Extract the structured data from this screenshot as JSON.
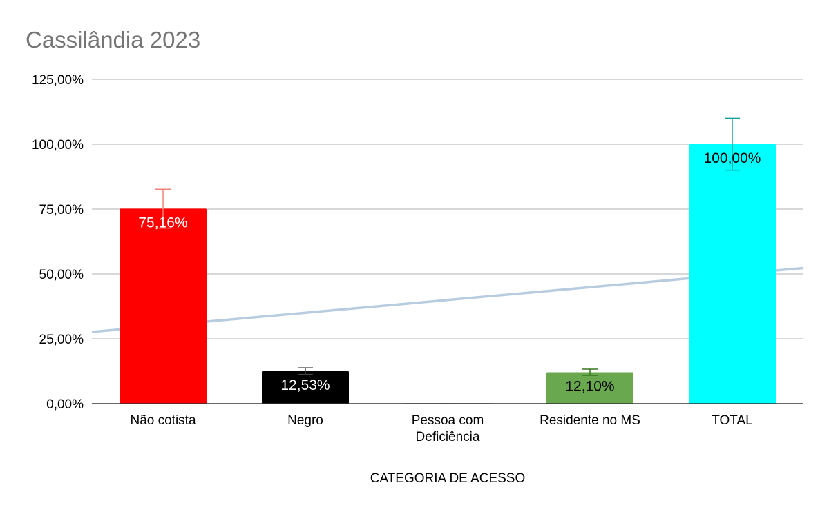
{
  "chart_data": {
    "type": "bar",
    "title": "Cassilândia 2023",
    "xlabel": "CATEGORIA DE ACESSO",
    "ylabel": "",
    "categories": [
      [
        "Não cotista"
      ],
      [
        "Negro"
      ],
      [
        "Pessoa com",
        "Deficiência"
      ],
      [
        "Residente no MS"
      ],
      [
        "TOTAL"
      ]
    ],
    "values": [
      75.16,
      12.53,
      0,
      12.1,
      100.0
    ],
    "data_labels": [
      "75,16%",
      "12,53%",
      "",
      "12,10%",
      "100,00%"
    ],
    "bar_colors": [
      "#ff0000",
      "#000000",
      "#cccccc",
      "#6aa84f",
      "#00ffff"
    ],
    "data_label_colors": [
      "#ffffff",
      "#ffffff",
      "#000000",
      "#000000",
      "#000000"
    ],
    "error_bars": [
      7.5,
      1.25,
      0,
      1.2,
      10
    ],
    "error_bar_colors": [
      "#f4817c",
      "#444444",
      "#aaaaaa",
      "#38761d",
      "#12a39a"
    ],
    "ylim": [
      0,
      125
    ],
    "yticks": [
      0,
      25,
      50,
      75,
      100,
      125
    ],
    "ytick_labels": [
      "0,00%",
      "25,00%",
      "50,00%",
      "75,00%",
      "100,00%",
      "125,00%"
    ],
    "trendline": {
      "type": "linear",
      "color": "#b8cce0"
    },
    "grid": true,
    "legend": "none"
  }
}
